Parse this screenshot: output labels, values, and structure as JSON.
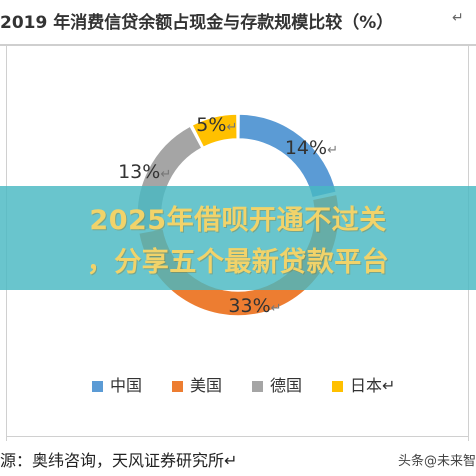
{
  "header": {
    "title": "2019 年消费信贷余额占现金与存款规模比较（%）",
    "title_mark": "↵"
  },
  "chart_data": {
    "type": "pie",
    "subtype": "donut",
    "title": "2019 年消费信贷余额占现金与存款规模比较（%）",
    "categories": [
      "中国",
      "美国",
      "德国",
      "日本"
    ],
    "series": [
      {
        "values": [
          14,
          33,
          13,
          5
        ],
        "data_labels": [
          "14%",
          "33%",
          "13%",
          "5%"
        ],
        "colors": [
          "#5b9bd5",
          "#ed7d31",
          "#a5a5a5",
          "#ffc000"
        ]
      }
    ],
    "hidden_by_overlay": true,
    "legend_position": "bottom",
    "label_mark": "↵"
  },
  "legend": {
    "items": [
      {
        "label": "中国",
        "color": "#5b9bd5"
      },
      {
        "label": "美国",
        "color": "#ed7d31"
      },
      {
        "label": "德国",
        "color": "#a5a5a5"
      },
      {
        "label": "日本",
        "color": "#ffc000"
      }
    ],
    "end_mark": "↵"
  },
  "banner": {
    "line1": "2025年借呗开通不过关",
    "line2": "，分享五个最新贷款平台"
  },
  "footer": {
    "source": "源：奥纬咨询，天风证券研究所↵",
    "watermark": "头条@未来智"
  }
}
